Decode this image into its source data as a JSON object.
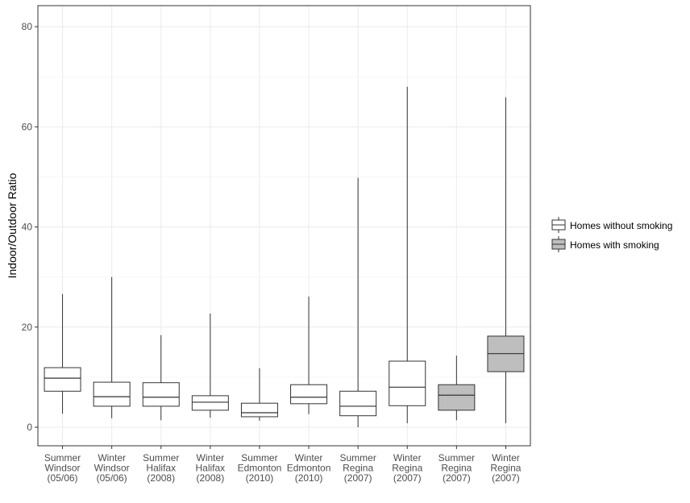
{
  "chart_data": {
    "type": "boxplot",
    "title": "",
    "xlabel": "",
    "ylabel": "Indoor/Outdoor Ratio",
    "ylim": [
      -3.7,
      84.2
    ],
    "yticks": [
      0,
      20,
      40,
      60,
      80
    ],
    "grid": true,
    "legend_placement": "right",
    "legend": [
      {
        "name": "Homes without smoking",
        "color": "#ffffff"
      },
      {
        "name": "Homes with smoking",
        "color": "#bebebe"
      }
    ],
    "categories": [
      [
        "Summer",
        "Windsor",
        "(05/06)"
      ],
      [
        "Winter",
        "Windsor",
        "(05/06)"
      ],
      [
        "Summer",
        "Halifax",
        "(2008)"
      ],
      [
        "Winter",
        "Halifax",
        "(2008)"
      ],
      [
        "Summer",
        "Edmonton",
        "(2010)"
      ],
      [
        "Winter",
        "Edmonton",
        "(2010)"
      ],
      [
        "Summer",
        "Regina",
        "(2007)"
      ],
      [
        "Winter",
        "Regina",
        "(2007)"
      ],
      [
        "Summer",
        "Regina",
        "(2007)"
      ],
      [
        "Winter",
        "Regina",
        "(2007)"
      ]
    ],
    "boxes": [
      {
        "group": 0,
        "min": 2.7,
        "q1": 7.2,
        "median": 9.8,
        "q3": 11.9,
        "max": 26.6
      },
      {
        "group": 0,
        "min": 1.8,
        "q1": 4.2,
        "median": 6.1,
        "q3": 9.0,
        "max": 30.0
      },
      {
        "group": 0,
        "min": 1.4,
        "q1": 4.2,
        "median": 6.0,
        "q3": 8.9,
        "max": 18.4
      },
      {
        "group": 0,
        "min": 1.9,
        "q1": 3.4,
        "median": 5.0,
        "q3": 6.3,
        "max": 22.7
      },
      {
        "group": 0,
        "min": 1.3,
        "q1": 2.1,
        "median": 2.9,
        "q3": 4.8,
        "max": 11.8
      },
      {
        "group": 0,
        "min": 2.6,
        "q1": 4.7,
        "median": 6.0,
        "q3": 8.5,
        "max": 26.1
      },
      {
        "group": 0,
        "min": 0.0,
        "q1": 2.3,
        "median": 4.2,
        "q3": 7.2,
        "max": 49.8
      },
      {
        "group": 0,
        "min": 0.8,
        "q1": 4.3,
        "median": 8.0,
        "q3": 13.2,
        "max": 68.0
      },
      {
        "group": 1,
        "min": 1.4,
        "q1": 3.4,
        "median": 6.4,
        "q3": 8.5,
        "max": 14.3
      },
      {
        "group": 1,
        "min": 0.8,
        "q1": 11.1,
        "median": 14.7,
        "q3": 18.2,
        "max": 65.9
      }
    ]
  }
}
